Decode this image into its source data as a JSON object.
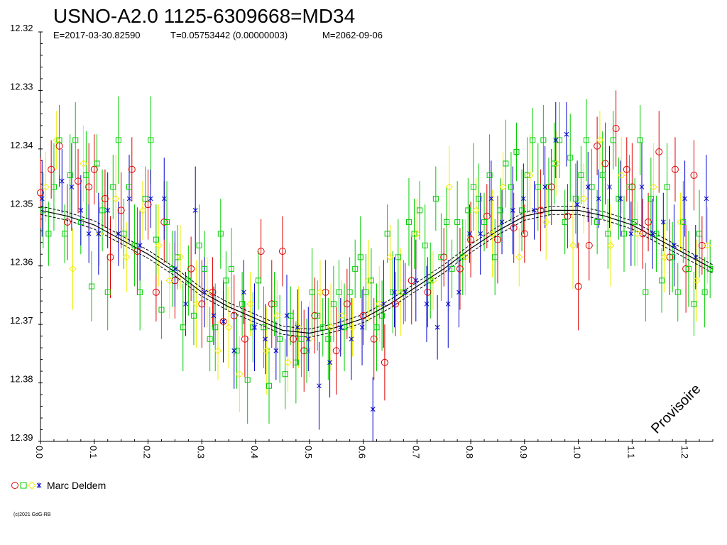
{
  "chart_data": {
    "type": "scatter",
    "title": "USNO-A2.0 1125-6309668=MD34",
    "subtitle": {
      "epoch": "E=2017-03-30.82590",
      "period": "T=0.05753442 (0.00000003)",
      "maximum": "M=2062-09-06"
    },
    "xlim": [
      0.0,
      1.25
    ],
    "ylim": [
      12.32,
      12.39
    ],
    "y_inverted": true,
    "x_ticks": [
      0.0,
      0.1,
      0.2,
      0.3,
      0.4,
      0.5,
      0.6,
      0.7,
      0.8,
      0.9,
      1.0,
      1.1,
      1.2
    ],
    "x_tick_labels": [
      "0.0",
      "0.1",
      "0.2",
      "0.3",
      "0.4",
      "0.5",
      "0.6",
      "0.7",
      "0.8",
      "0.9",
      "1.0",
      "1.1",
      "1.2"
    ],
    "y_ticks": [
      12.32,
      12.33,
      12.34,
      12.35,
      12.36,
      12.37,
      12.38,
      12.39
    ],
    "y_tick_labels": [
      "12.32",
      "12.33",
      "12.34",
      "12.35",
      "12.36",
      "12.37",
      "12.38",
      "12.39"
    ],
    "watermark": "Provisoire",
    "legend": {
      "label": "Marc Deldem",
      "placement": "bottom-left"
    },
    "fit": {
      "phase": [
        0.0,
        0.05,
        0.1,
        0.15,
        0.2,
        0.25,
        0.3,
        0.35,
        0.4,
        0.45,
        0.5,
        0.55,
        0.6,
        0.65,
        0.7,
        0.75,
        0.8,
        0.85,
        0.9,
        0.95,
        1.0,
        1.05,
        1.1,
        1.15,
        1.2,
        1.25
      ],
      "mag": [
        12.3505,
        12.3515,
        12.353,
        12.3555,
        12.358,
        12.361,
        12.3645,
        12.367,
        12.369,
        12.371,
        12.3715,
        12.3705,
        12.369,
        12.3665,
        12.3635,
        12.3605,
        12.357,
        12.354,
        12.3515,
        12.3505,
        12.3505,
        12.3515,
        12.353,
        12.3555,
        12.358,
        12.3605
      ],
      "band_offset": 0.0007
    },
    "series": [
      {
        "color": "#dd0000",
        "marker": "circle",
        "x": [
          0.0,
          0.02,
          0.035,
          0.05,
          0.07,
          0.09,
          0.1,
          0.12,
          0.13,
          0.15,
          0.17,
          0.18,
          0.2,
          0.215,
          0.23,
          0.25,
          0.28,
          0.3,
          0.32,
          0.34,
          0.36,
          0.38,
          0.41,
          0.43,
          0.45,
          0.47,
          0.49,
          0.51,
          0.53,
          0.55,
          0.57,
          0.6,
          0.62,
          0.64,
          0.66,
          0.69,
          0.72,
          0.75,
          0.78,
          0.8,
          0.83,
          0.85,
          0.88,
          0.9,
          0.93,
          0.95,
          0.98,
          1.0,
          1.02,
          1.035,
          1.05,
          1.07,
          1.09,
          1.1,
          1.12,
          1.13,
          1.15,
          1.17,
          1.18,
          1.2,
          1.215,
          1.23
        ],
        "y": [
          12.3475,
          12.3435,
          12.3395,
          12.3525,
          12.3455,
          12.3465,
          12.3435,
          12.3485,
          12.3585,
          12.3505,
          12.3435,
          12.3575,
          12.3495,
          12.3645,
          12.3525,
          12.3625,
          12.3605,
          12.3665,
          12.3645,
          12.3695,
          12.3685,
          12.3725,
          12.3575,
          12.3665,
          12.3575,
          12.3725,
          12.3745,
          12.3685,
          12.3645,
          12.3745,
          12.3665,
          12.3685,
          12.3725,
          12.3765,
          12.3665,
          12.3625,
          12.3645,
          12.3585,
          12.3605,
          12.3555,
          12.3515,
          12.3555,
          12.3535,
          12.3545,
          12.3505,
          12.3465,
          12.3515,
          12.3635,
          12.3565,
          12.3395,
          12.3425,
          12.3365,
          12.3435,
          12.3465,
          12.3545,
          12.3525,
          12.3405,
          12.3585,
          12.3435,
          12.3605,
          12.3445,
          12.3565
        ]
      },
      {
        "color": "#00cc00",
        "marker": "square",
        "x": [
          0.005,
          0.015,
          0.025,
          0.035,
          0.045,
          0.055,
          0.065,
          0.075,
          0.085,
          0.095,
          0.105,
          0.115,
          0.125,
          0.135,
          0.145,
          0.155,
          0.165,
          0.175,
          0.185,
          0.195,
          0.205,
          0.215,
          0.225,
          0.235,
          0.245,
          0.255,
          0.265,
          0.275,
          0.285,
          0.295,
          0.305,
          0.315,
          0.325,
          0.335,
          0.345,
          0.355,
          0.365,
          0.375,
          0.385,
          0.395,
          0.405,
          0.415,
          0.425,
          0.435,
          0.445,
          0.455,
          0.465,
          0.475,
          0.485,
          0.495,
          0.505,
          0.515,
          0.525,
          0.535,
          0.545,
          0.555,
          0.565,
          0.575,
          0.585,
          0.595,
          0.605,
          0.615,
          0.625,
          0.635,
          0.645,
          0.655,
          0.665,
          0.675,
          0.685,
          0.695,
          0.705,
          0.715,
          0.725,
          0.735,
          0.745,
          0.755,
          0.765,
          0.775,
          0.785,
          0.795,
          0.805,
          0.815,
          0.825,
          0.835,
          0.845,
          0.855,
          0.865,
          0.875,
          0.885,
          0.895,
          0.905,
          0.915,
          0.925,
          0.935,
          0.945,
          0.955,
          0.965,
          0.975,
          0.985,
          0.995,
          1.005,
          1.015,
          1.025,
          1.035,
          1.045,
          1.055,
          1.065,
          1.075,
          1.085,
          1.095,
          1.105,
          1.115,
          1.125,
          1.135,
          1.145,
          1.155,
          1.165,
          1.175,
          1.185,
          1.195,
          1.205,
          1.215,
          1.225,
          1.235,
          1.245
        ],
        "y": [
          12.3505,
          12.3545,
          12.3465,
          12.3385,
          12.3545,
          12.3445,
          12.3385,
          12.3525,
          12.3445,
          12.3635,
          12.3425,
          12.3505,
          12.3645,
          12.3465,
          12.3385,
          12.3545,
          12.3465,
          12.3565,
          12.3645,
          12.3485,
          12.3385,
          12.3555,
          12.3675,
          12.3525,
          12.3605,
          12.3585,
          12.3705,
          12.3625,
          12.3685,
          12.3565,
          12.3605,
          12.3725,
          12.3705,
          12.3545,
          12.3625,
          12.3605,
          12.3745,
          12.3665,
          12.3795,
          12.3705,
          12.3625,
          12.3705,
          12.3805,
          12.3665,
          12.3725,
          12.3785,
          12.3685,
          12.3765,
          12.3725,
          12.3745,
          12.3645,
          12.3685,
          12.3705,
          12.3725,
          12.3665,
          12.3645,
          12.3705,
          12.3645,
          12.3605,
          12.3585,
          12.3645,
          12.3625,
          12.3705,
          12.3685,
          12.3545,
          12.3645,
          12.3585,
          12.3645,
          12.3525,
          12.3545,
          12.3505,
          12.3565,
          12.3625,
          12.3485,
          12.3585,
          12.3525,
          12.3605,
          12.3525,
          12.3585,
          12.3505,
          12.3465,
          12.3485,
          12.3525,
          12.3445,
          12.3585,
          12.3505,
          12.3425,
          12.3465,
          12.3405,
          12.3505,
          12.3445,
          12.3385,
          12.3465,
          12.3385,
          12.3465,
          12.3425,
          12.3385,
          12.3525,
          12.3415,
          12.3485,
          12.3445,
          12.3385,
          12.3465,
          12.3525,
          12.3445,
          12.3545,
          12.3385,
          12.3485,
          12.3545,
          12.3465,
          12.3525,
          12.3385,
          12.3645,
          12.3485,
          12.3545,
          12.3625,
          12.3465,
          12.3585,
          12.3645,
          12.3525,
          12.3605,
          12.3665,
          12.3545,
          12.3645,
          12.3605
        ]
      },
      {
        "color": "#eeee00",
        "marker": "diamond",
        "x": [
          0.01,
          0.03,
          0.06,
          0.08,
          0.11,
          0.14,
          0.16,
          0.19,
          0.22,
          0.24,
          0.26,
          0.29,
          0.31,
          0.33,
          0.35,
          0.37,
          0.39,
          0.42,
          0.44,
          0.46,
          0.48,
          0.5,
          0.52,
          0.54,
          0.56,
          0.58,
          0.61,
          0.63,
          0.65,
          0.67,
          0.7,
          0.73,
          0.76,
          0.79,
          0.81,
          0.84,
          0.86,
          0.89,
          0.91,
          0.94,
          0.96,
          0.99,
          1.01,
          1.04,
          1.06,
          1.08,
          1.11,
          1.14,
          1.16,
          1.19,
          1.22,
          1.24
        ],
        "y": [
          12.3465,
          12.3385,
          12.3605,
          12.3425,
          12.3545,
          12.3485,
          12.3585,
          12.3505,
          12.3565,
          12.3625,
          12.3585,
          12.3665,
          12.3645,
          12.3745,
          12.3705,
          12.3785,
          12.3665,
          12.3745,
          12.3685,
          12.3765,
          12.3705,
          12.3725,
          12.3645,
          12.3705,
          12.3685,
          12.3705,
          12.3625,
          12.3665,
          12.3585,
          12.3645,
          12.3545,
          12.3625,
          12.3465,
          12.3585,
          12.3505,
          12.3545,
          12.3465,
          12.3585,
          12.3445,
          12.3525,
          12.3425,
          12.3565,
          12.3485,
          12.3385,
          12.3565,
          12.3445,
          12.3545,
          12.3465,
          12.3585,
          12.3525,
          12.3625,
          12.3565
        ]
      },
      {
        "color": "#0000cc",
        "marker": "star",
        "x": [
          0.003,
          0.04,
          0.058,
          0.075,
          0.09,
          0.108,
          0.125,
          0.145,
          0.165,
          0.185,
          0.205,
          0.23,
          0.25,
          0.27,
          0.288,
          0.305,
          0.322,
          0.34,
          0.36,
          0.378,
          0.398,
          0.418,
          0.438,
          0.458,
          0.478,
          0.498,
          0.518,
          0.538,
          0.558,
          0.578,
          0.598,
          0.618,
          0.638,
          0.658,
          0.678,
          0.698,
          0.718,
          0.738,
          0.758,
          0.778,
          0.798,
          0.818,
          0.838,
          0.858,
          0.878,
          0.898,
          0.918,
          0.938,
          0.958,
          0.978,
          0.998,
          1.018,
          1.038,
          1.058,
          1.078,
          1.098,
          1.118,
          1.138,
          1.158,
          1.178,
          1.198,
          1.218,
          1.238
        ],
        "y": [
          12.3485,
          12.3455,
          12.3465,
          12.3505,
          12.3545,
          12.3545,
          12.3505,
          12.3545,
          12.3485,
          12.3565,
          12.3485,
          12.3485,
          12.3605,
          12.3665,
          12.3505,
          12.3645,
          12.3685,
          12.3695,
          12.3745,
          12.3645,
          12.3705,
          12.3725,
          12.3745,
          12.3685,
          12.3705,
          12.3725,
          12.3805,
          12.3765,
          12.3705,
          12.3725,
          12.3705,
          12.3845,
          12.3665,
          12.3645,
          12.3645,
          12.3625,
          12.3665,
          12.3705,
          12.3665,
          12.3645,
          12.3545,
          12.3545,
          12.3485,
          12.3525,
          12.3505,
          12.3485,
          12.3505,
          12.3465,
          12.3385,
          12.3375,
          12.3495,
          12.3465,
          12.3485,
          12.3465,
          12.3485,
          12.3545,
          12.3465,
          12.3545,
          12.3525,
          12.3565,
          12.3485,
          12.3585,
          12.3485
        ]
      }
    ]
  }
}
